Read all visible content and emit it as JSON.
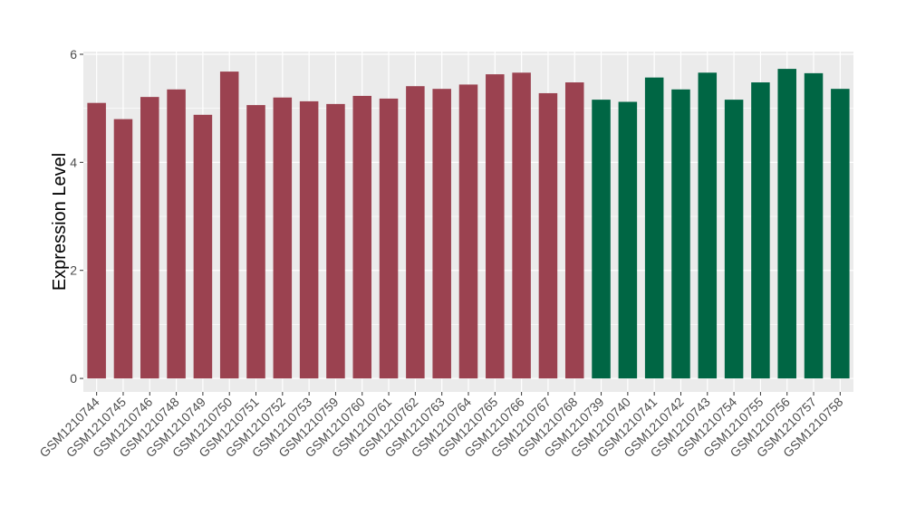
{
  "chart_data": {
    "type": "bar",
    "title": "",
    "xlabel": "",
    "ylabel": "Expression Level",
    "ylim": [
      -0.25,
      6.05
    ],
    "yticks": [
      0,
      2,
      4,
      6
    ],
    "grid": true,
    "legend": "none",
    "categories": [
      "GSM1210744",
      "GSM1210745",
      "GSM1210746",
      "GSM1210748",
      "GSM1210749",
      "GSM1210750",
      "GSM1210751",
      "GSM1210752",
      "GSM1210753",
      "GSM1210759",
      "GSM1210760",
      "GSM1210761",
      "GSM1210762",
      "GSM1210763",
      "GSM1210764",
      "GSM1210765",
      "GSM1210766",
      "GSM1210767",
      "GSM1210768",
      "GSM1210739",
      "GSM1210740",
      "GSM1210741",
      "GSM1210742",
      "GSM1210743",
      "GSM1210754",
      "GSM1210755",
      "GSM1210756",
      "GSM1210757",
      "GSM1210758"
    ],
    "values": [
      5.1,
      4.8,
      5.21,
      5.35,
      4.88,
      5.68,
      5.06,
      5.2,
      5.13,
      5.08,
      5.23,
      5.18,
      5.41,
      5.36,
      5.44,
      5.63,
      5.66,
      5.28,
      5.48,
      5.16,
      5.12,
      5.57,
      5.35,
      5.66,
      5.16,
      5.48,
      5.73,
      5.65,
      5.36
    ],
    "colors": [
      "#9b4250",
      "#9b4250",
      "#9b4250",
      "#9b4250",
      "#9b4250",
      "#9b4250",
      "#9b4250",
      "#9b4250",
      "#9b4250",
      "#9b4250",
      "#9b4250",
      "#9b4250",
      "#9b4250",
      "#9b4250",
      "#9b4250",
      "#9b4250",
      "#9b4250",
      "#9b4250",
      "#9b4250",
      "#006644",
      "#006644",
      "#006644",
      "#006644",
      "#006644",
      "#006644",
      "#006644",
      "#006644",
      "#006644",
      "#006644"
    ],
    "panel_background": "#ebebeb",
    "gridline_color": "#ffffff"
  }
}
